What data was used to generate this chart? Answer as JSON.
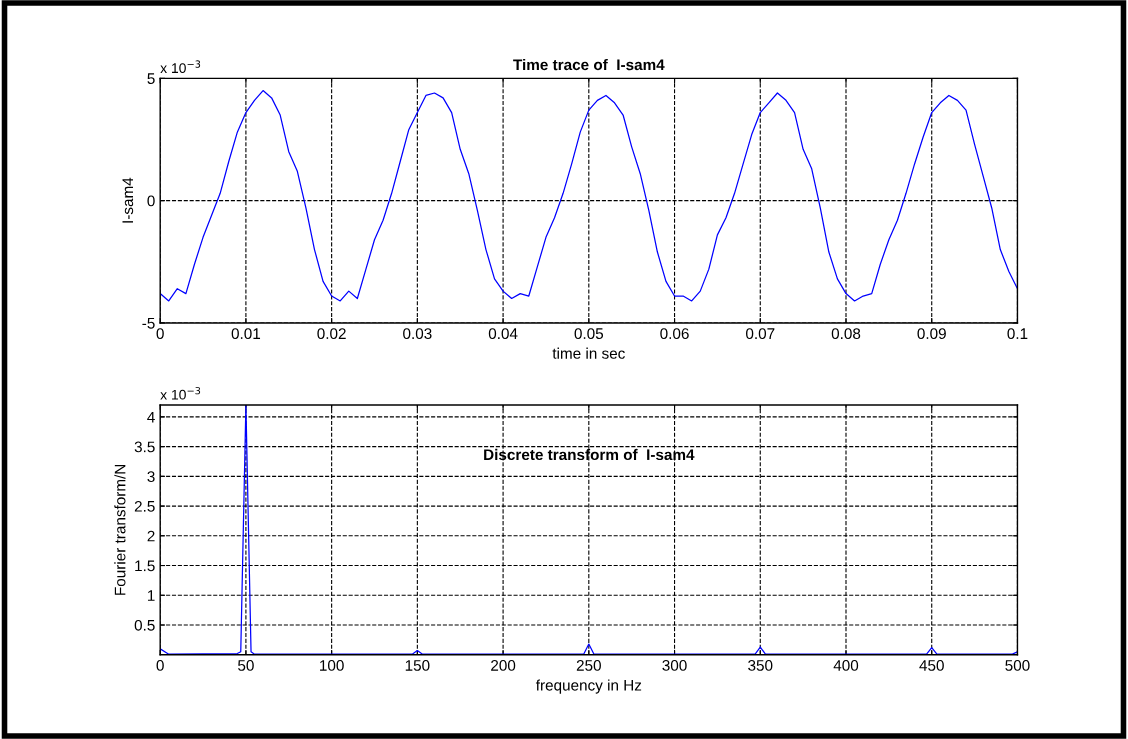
{
  "chart_data": [
    {
      "type": "line",
      "title": "Time trace of  I-sam4",
      "xlabel": "time in sec",
      "ylabel": "I-sam4",
      "annotations": [
        "x 10$^{−3}$"
      ],
      "xlim": [
        0,
        0.1
      ],
      "ylim": [
        -5,
        5
      ],
      "xticks": [
        0,
        0.01,
        0.02,
        0.03,
        0.04,
        0.05,
        0.06,
        0.07,
        0.08,
        0.09,
        0.1
      ],
      "yticks": [
        -5,
        0,
        5
      ],
      "grid": true,
      "x": [
        0,
        0.001,
        0.002,
        0.003,
        0.004,
        0.005,
        0.006,
        0.007,
        0.008,
        0.009,
        0.01,
        0.011,
        0.012,
        0.013,
        0.014,
        0.015,
        0.016,
        0.017,
        0.018,
        0.019,
        0.02,
        0.021,
        0.022,
        0.023,
        0.024,
        0.025,
        0.026,
        0.027,
        0.028,
        0.029,
        0.03,
        0.031,
        0.032,
        0.033,
        0.034,
        0.035,
        0.036,
        0.037,
        0.038,
        0.039,
        0.04,
        0.041,
        0.042,
        0.043,
        0.044,
        0.045,
        0.046,
        0.047,
        0.048,
        0.049,
        0.05,
        0.051,
        0.052,
        0.053,
        0.054,
        0.055,
        0.056,
        0.057,
        0.058,
        0.059,
        0.06,
        0.061,
        0.062,
        0.063,
        0.064,
        0.065,
        0.066,
        0.067,
        0.068,
        0.069,
        0.07,
        0.071,
        0.072,
        0.073,
        0.074,
        0.075,
        0.076,
        0.077,
        0.078,
        0.079,
        0.08,
        0.081,
        0.082,
        0.083,
        0.084,
        0.085,
        0.086,
        0.087,
        0.088,
        0.089,
        0.09,
        0.091,
        0.092,
        0.093,
        0.094,
        0.095,
        0.096,
        0.097,
        0.098,
        0.099,
        0.1
      ],
      "series": [
        {
          "color": "#0000ff",
          "values": [
            -3.8,
            -4.1,
            -3.6,
            -3.8,
            -2.6,
            -1.5,
            -0.6,
            0.3,
            1.6,
            2.8,
            3.6,
            4.1,
            4.5,
            4.2,
            3.5,
            2.0,
            1.2,
            -0.3,
            -2.0,
            -3.3,
            -3.9,
            -4.1,
            -3.7,
            -4.0,
            -2.8,
            -1.6,
            -0.8,
            0.3,
            1.6,
            2.9,
            3.6,
            4.3,
            4.4,
            4.2,
            3.6,
            2.1,
            1.1,
            -0.4,
            -2.0,
            -3.2,
            -3.7,
            -4.0,
            -3.8,
            -3.9,
            -2.7,
            -1.5,
            -0.7,
            0.3,
            1.5,
            2.8,
            3.7,
            4.1,
            4.3,
            4.0,
            3.5,
            2.2,
            1.1,
            -0.4,
            -2.1,
            -3.3,
            -3.9,
            -3.9,
            -4.1,
            -3.7,
            -2.8,
            -1.4,
            -0.7,
            0.3,
            1.5,
            2.7,
            3.6,
            4.0,
            4.4,
            4.1,
            3.6,
            2.1,
            1.3,
            -0.3,
            -2.1,
            -3.2,
            -3.8,
            -4.1,
            -3.9,
            -3.8,
            -2.6,
            -1.6,
            -0.8,
            0.3,
            1.5,
            2.6,
            3.6,
            4.0,
            4.3,
            4.1,
            3.7,
            2.3,
            1.0,
            -0.3,
            -2.0,
            -2.9,
            -3.6
          ]
        }
      ]
    },
    {
      "type": "line",
      "title": "Discrete transform of  I-sam4",
      "xlabel": "frequency in Hz",
      "ylabel": "Fourier transform/N",
      "annotations": [
        "x 10$^{−3}$"
      ],
      "xlim": [
        0,
        500
      ],
      "ylim": [
        0,
        4.2
      ],
      "xticks": [
        0,
        50,
        100,
        150,
        200,
        250,
        300,
        350,
        400,
        450,
        500
      ],
      "yticks": [
        0.5,
        1,
        1.5,
        2,
        2.5,
        3,
        3.5,
        4
      ],
      "grid": true,
      "x": [
        0,
        5,
        45,
        47,
        50,
        53,
        55,
        147,
        150,
        153,
        247,
        250,
        253,
        347,
        350,
        353,
        447,
        450,
        453,
        497,
        500
      ],
      "series": [
        {
          "color": "#0000ff",
          "values": [
            0.1,
            0.01,
            0.02,
            0.05,
            4.2,
            0.05,
            0.01,
            0.01,
            0.07,
            0.01,
            0.01,
            0.18,
            0.01,
            0.01,
            0.13,
            0.01,
            0.01,
            0.12,
            0.01,
            0.01,
            0.05
          ]
        }
      ]
    }
  ]
}
